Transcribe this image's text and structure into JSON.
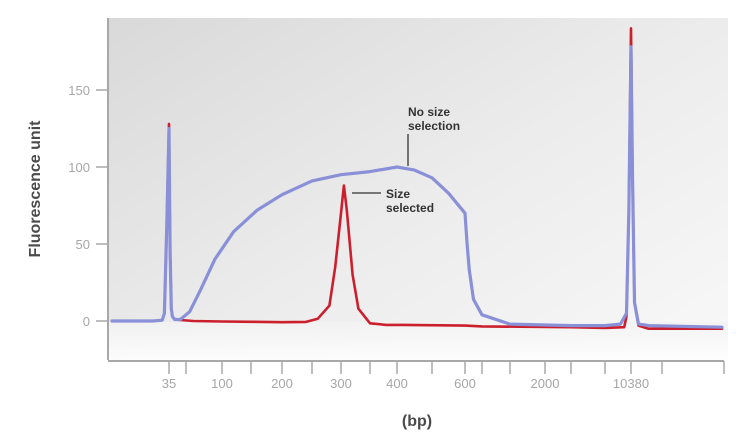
{
  "chart_data": {
    "type": "line",
    "title": "",
    "xlabel": "(bp)",
    "ylabel": "Fluorescence unit",
    "x_scale": "categorical-log",
    "ylim": [
      -8,
      198
    ],
    "grid": false,
    "legend": "none",
    "x_tick_labels": [
      {
        "position": 35,
        "label": "35"
      },
      {
        "position": 100,
        "label": "100"
      },
      {
        "position": 200,
        "label": "200"
      },
      {
        "position": 300,
        "label": "300"
      },
      {
        "position": 400,
        "label": "400"
      },
      {
        "position": 600,
        "label": "600"
      },
      {
        "position": 2000,
        "label": "2000"
      },
      {
        "position": 10380,
        "label": "10380"
      }
    ],
    "x_minor_ticks": [
      50,
      150,
      250,
      350,
      500,
      1000,
      1500,
      3000,
      7000,
      15000
    ],
    "y_ticks": [
      0,
      50,
      100,
      150
    ],
    "y_tick_labels": [
      "0",
      "50",
      "100",
      "150"
    ],
    "series": [
      {
        "name": "No size selection",
        "color": "#8a90d8",
        "x": [
          10,
          28,
          32,
          33,
          34,
          35,
          36,
          37,
          38,
          40,
          45,
          55,
          70,
          90,
          120,
          160,
          200,
          250,
          300,
          350,
          400,
          450,
          500,
          550,
          600,
          650,
          700,
          800,
          1000,
          1500,
          3000,
          7000,
          9000,
          9800,
          10100,
          10380,
          10600,
          10900,
          11500,
          13000,
          20000
        ],
        "values": [
          0,
          0,
          0.5,
          5,
          60,
          125,
          45,
          8,
          3,
          1,
          1,
          6,
          20,
          40,
          58,
          72,
          82,
          91,
          95,
          97,
          100,
          98,
          93,
          83,
          70,
          50,
          33,
          14,
          4,
          -2,
          -3,
          -3,
          -2,
          5,
          70,
          178,
          95,
          12,
          -2,
          -3,
          -4
        ]
      },
      {
        "name": "Size selected",
        "color": "#cc1f2e",
        "x": [
          10,
          28,
          32,
          33,
          34,
          35,
          36,
          37,
          38,
          40,
          60,
          100,
          150,
          200,
          240,
          260,
          280,
          290,
          300,
          305,
          310,
          320,
          330,
          350,
          380,
          420,
          600,
          1000,
          3000,
          7000,
          9500,
          9800,
          10100,
          10380,
          10600,
          10900,
          11500,
          13000,
          20000
        ],
        "values": [
          0,
          0,
          0.5,
          5,
          60,
          128,
          45,
          8,
          3,
          1,
          0,
          -0.3,
          -0.5,
          -0.8,
          -0.6,
          1.5,
          10,
          35,
          70,
          88,
          72,
          30,
          8,
          -1.5,
          -2.5,
          -2.5,
          -3,
          -3.5,
          -4,
          -4.5,
          -4,
          3,
          70,
          190,
          95,
          12,
          -3,
          -5,
          -5
        ]
      }
    ],
    "annotations": [
      {
        "text": [
          "No size",
          "selection"
        ],
        "points_to": "No size selection"
      },
      {
        "text": [
          "Size",
          "selected"
        ],
        "points_to": "Size selected"
      }
    ]
  }
}
